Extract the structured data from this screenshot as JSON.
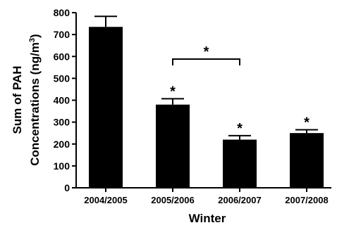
{
  "chart_data": {
    "type": "bar",
    "categories": [
      "2004/2005",
      "2005/2006",
      "2006/2007",
      "2007/2008"
    ],
    "values": [
      735,
      380,
      220,
      250
    ],
    "errors": [
      48,
      27,
      18,
      15
    ],
    "xlabel": "Winter",
    "ylabel_line1": "Sum of PAH",
    "ylabel_line2_pre": "Concentrations (ng/m",
    "ylabel_sup": "3",
    "ylabel_line2_post": ")",
    "ylim": [
      0,
      800
    ],
    "yticks": [
      0,
      100,
      200,
      300,
      400,
      500,
      600,
      700,
      800
    ],
    "bar_color": "#000000",
    "significance": [
      "",
      "*",
      "*",
      "*"
    ],
    "comparison": {
      "from": 1,
      "to": 2,
      "label": "*"
    }
  }
}
